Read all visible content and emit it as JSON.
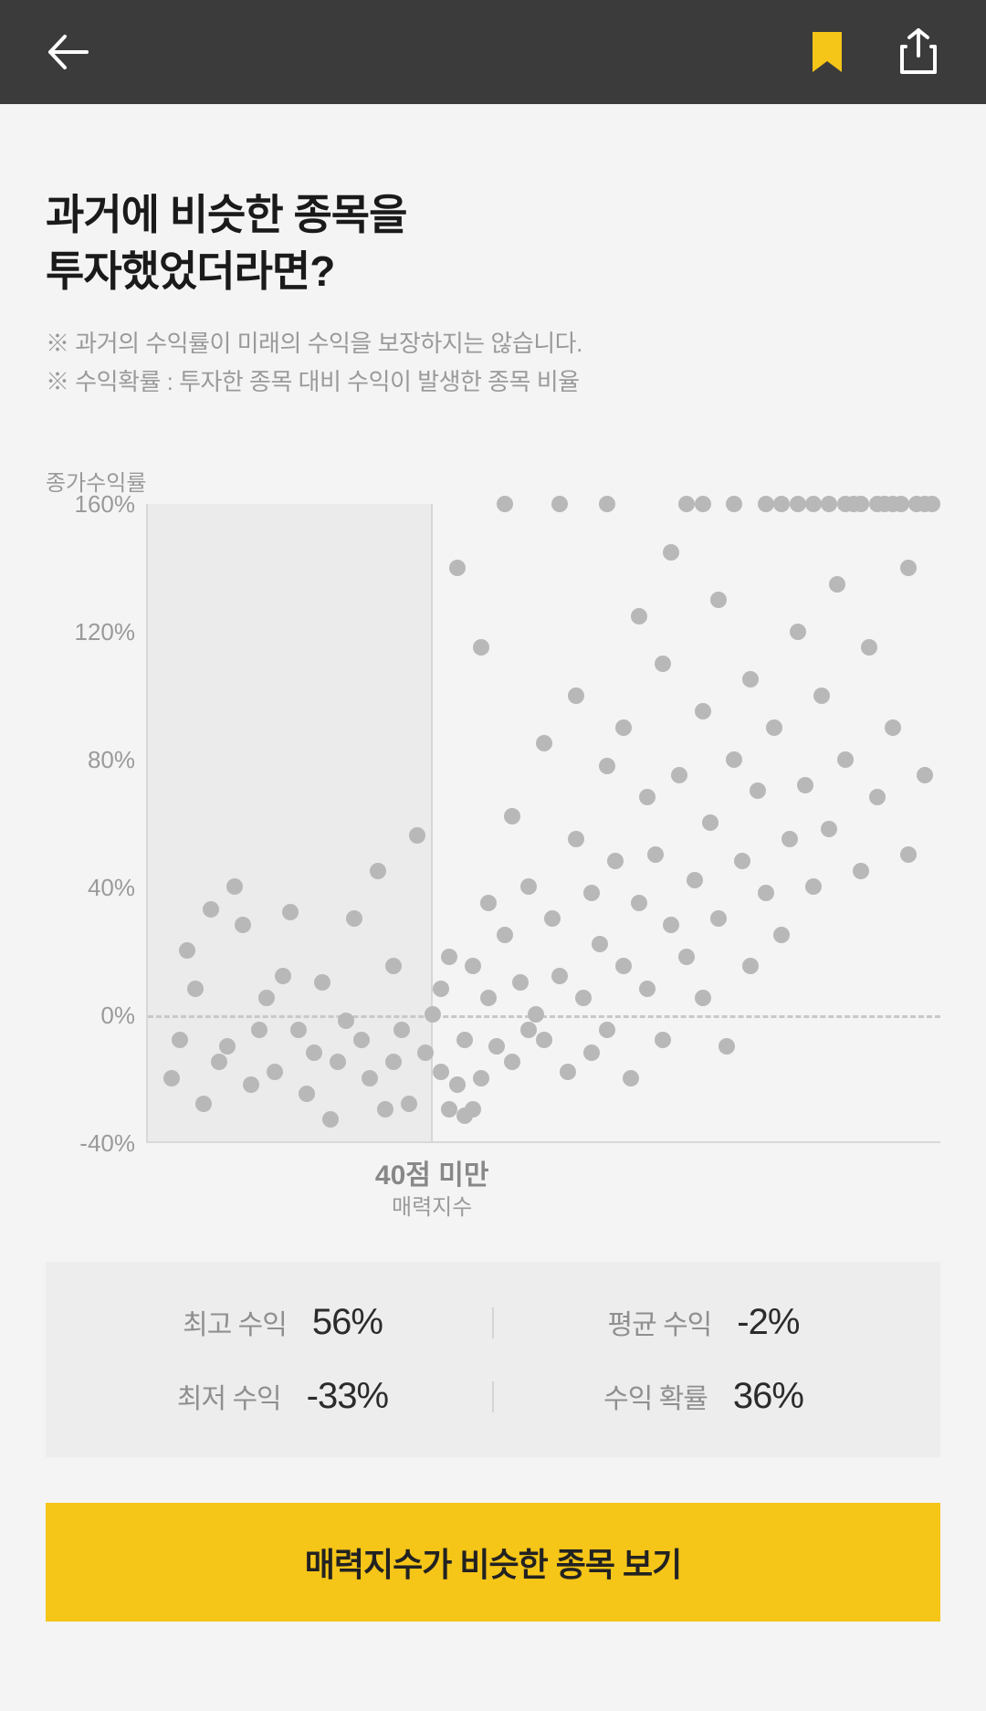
{
  "header": {
    "back_icon": "back-arrow",
    "bookmark_icon": "bookmark",
    "share_icon": "share"
  },
  "title_line1": "과거에 비슷한 종목을",
  "title_line2": "투자했었더라면?",
  "note1": "※ 과거의 수익률이 미래의 수익을 보장하지는 않습니다.",
  "note2": "※ 수익확률 : 투자한 종목 대비 수익이 발생한 종목 비율",
  "chart": {
    "type": "scatter",
    "y_title": "종가수익률",
    "x_label_main": "40점 미만",
    "x_label_sub": "매력지수",
    "ylim": [
      -40,
      160
    ],
    "yticks": [
      160,
      120,
      80,
      40,
      0,
      -40
    ],
    "ytick_labels": [
      "160%",
      "120%",
      "80%",
      "40%",
      "0%",
      "-40%"
    ],
    "xlim": [
      0,
      100
    ],
    "shade_x_end": 36,
    "zero_y": 0,
    "dot_color": "#b8b8b8",
    "dot_radius": 9,
    "background_color": "#ffffff00",
    "shade_color": "#e9e9e9",
    "border_color": "#d8d8d8",
    "dash_color": "#c8c8c8",
    "points": [
      [
        3,
        -20
      ],
      [
        5,
        20
      ],
      [
        7,
        -28
      ],
      [
        8,
        33
      ],
      [
        10,
        -10
      ],
      [
        12,
        28
      ],
      [
        13,
        -22
      ],
      [
        15,
        5
      ],
      [
        16,
        -18
      ],
      [
        18,
        32
      ],
      [
        19,
        -5
      ],
      [
        20,
        -25
      ],
      [
        22,
        10
      ],
      [
        23,
        -33
      ],
      [
        24,
        -15
      ],
      [
        26,
        30
      ],
      [
        27,
        -8
      ],
      [
        28,
        -20
      ],
      [
        30,
        -30
      ],
      [
        31,
        15
      ],
      [
        32,
        -5
      ],
      [
        33,
        -28
      ],
      [
        34,
        56
      ],
      [
        35,
        -12
      ],
      [
        36,
        0
      ],
      [
        37,
        -18
      ],
      [
        38,
        18
      ],
      [
        38,
        -30
      ],
      [
        39,
        140
      ],
      [
        40,
        -8
      ],
      [
        40,
        -32
      ],
      [
        41,
        15
      ],
      [
        42,
        -20
      ],
      [
        43,
        5
      ],
      [
        44,
        -10
      ],
      [
        45,
        160
      ],
      [
        45,
        25
      ],
      [
        46,
        -15
      ],
      [
        47,
        10
      ],
      [
        48,
        -5
      ],
      [
        48,
        40
      ],
      [
        49,
        0
      ],
      [
        50,
        -8
      ],
      [
        51,
        30
      ],
      [
        52,
        12
      ],
      [
        52,
        160
      ],
      [
        53,
        -18
      ],
      [
        54,
        55
      ],
      [
        55,
        5
      ],
      [
        56,
        -12
      ],
      [
        56,
        38
      ],
      [
        57,
        22
      ],
      [
        58,
        160
      ],
      [
        58,
        -5
      ],
      [
        59,
        48
      ],
      [
        60,
        15
      ],
      [
        60,
        90
      ],
      [
        61,
        -20
      ],
      [
        62,
        35
      ],
      [
        63,
        68
      ],
      [
        63,
        8
      ],
      [
        64,
        50
      ],
      [
        65,
        -8
      ],
      [
        65,
        110
      ],
      [
        66,
        28
      ],
      [
        67,
        75
      ],
      [
        68,
        160
      ],
      [
        68,
        18
      ],
      [
        69,
        42
      ],
      [
        70,
        95
      ],
      [
        70,
        5
      ],
      [
        71,
        60
      ],
      [
        72,
        130
      ],
      [
        72,
        30
      ],
      [
        73,
        -10
      ],
      [
        74,
        80
      ],
      [
        74,
        160
      ],
      [
        75,
        48
      ],
      [
        76,
        15
      ],
      [
        76,
        105
      ],
      [
        77,
        70
      ],
      [
        78,
        160
      ],
      [
        78,
        38
      ],
      [
        79,
        90
      ],
      [
        80,
        160
      ],
      [
        80,
        25
      ],
      [
        81,
        55
      ],
      [
        82,
        120
      ],
      [
        82,
        160
      ],
      [
        83,
        72
      ],
      [
        84,
        160
      ],
      [
        84,
        40
      ],
      [
        85,
        100
      ],
      [
        86,
        160
      ],
      [
        86,
        58
      ],
      [
        87,
        135
      ],
      [
        88,
        160
      ],
      [
        88,
        80
      ],
      [
        89,
        160
      ],
      [
        90,
        45
      ],
      [
        90,
        160
      ],
      [
        91,
        115
      ],
      [
        92,
        160
      ],
      [
        92,
        68
      ],
      [
        93,
        160
      ],
      [
        94,
        90
      ],
      [
        94,
        160
      ],
      [
        95,
        160
      ],
      [
        96,
        140
      ],
      [
        96,
        50
      ],
      [
        97,
        160
      ],
      [
        98,
        160
      ],
      [
        98,
        75
      ],
      [
        99,
        160
      ],
      [
        42,
        115
      ],
      [
        46,
        62
      ],
      [
        50,
        85
      ],
      [
        54,
        100
      ],
      [
        58,
        78
      ],
      [
        62,
        125
      ],
      [
        66,
        145
      ],
      [
        70,
        160
      ],
      [
        37,
        8
      ],
      [
        39,
        -22
      ],
      [
        41,
        -30
      ],
      [
        43,
        35
      ],
      [
        29,
        45
      ],
      [
        31,
        -15
      ],
      [
        14,
        -5
      ],
      [
        17,
        12
      ],
      [
        21,
        -12
      ],
      [
        25,
        -2
      ],
      [
        6,
        8
      ],
      [
        9,
        -15
      ],
      [
        11,
        40
      ],
      [
        4,
        -8
      ]
    ]
  },
  "stats": {
    "max_label": "최고 수익",
    "max_value": "56%",
    "avg_label": "평균 수익",
    "avg_value": "-2%",
    "min_label": "최저 수익",
    "min_value": "-33%",
    "prob_label": "수익 확률",
    "prob_value": "36%"
  },
  "cta_label": "매력지수가 비슷한 종목 보기",
  "colors": {
    "header_bg": "#3b3b3b",
    "bookmark": "#f5c518",
    "cta_bg": "#f5c518",
    "text_main": "#1a1a1a",
    "text_muted": "#9a9a9a"
  }
}
